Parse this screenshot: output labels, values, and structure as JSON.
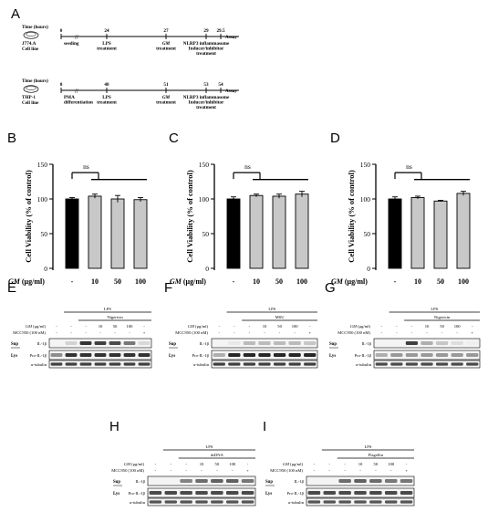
{
  "panel_letters": [
    "A",
    "B",
    "C",
    "D",
    "E",
    "F",
    "G",
    "H",
    "I"
  ],
  "timeline1": {
    "header": "Time (hours)",
    "cell_line": [
      "J774.A",
      "Cell line"
    ],
    "ticks": [
      {
        "value": "0",
        "label": [
          "seeding"
        ]
      },
      {
        "value": "24",
        "label": [
          "LPS",
          "treatment"
        ]
      },
      {
        "value": "27",
        "label": [
          "GM",
          "treatment"
        ]
      },
      {
        "value": "29",
        "label": [
          "NLRP3 inflammasome",
          "Inducer/inhibitor",
          "treatment"
        ]
      },
      {
        "value": "29.5",
        "label": [
          "Assay"
        ]
      }
    ]
  },
  "timeline2": {
    "header": "Time (hours)",
    "cell_line": [
      "THP-1",
      "Cell line"
    ],
    "ticks": [
      {
        "value": "0",
        "label": [
          "PMA",
          "differentiation"
        ]
      },
      {
        "value": "48",
        "label": [
          "LPS",
          "treatment"
        ]
      },
      {
        "value": "51",
        "label": [
          "GM",
          "treatment"
        ]
      },
      {
        "value": "53",
        "label": [
          "NLRP3 inflammasome",
          "Inducer/inhibitor",
          "treatment"
        ]
      },
      {
        "value": "54",
        "label": [
          "Assay"
        ]
      }
    ]
  },
  "chart_data": [
    {
      "type": "bar",
      "panel": "B",
      "ylabel": "Cell Viability (% of control)",
      "xlabel": "GM (μg/ml)",
      "categories": [
        "-",
        "10",
        "50",
        "100"
      ],
      "values": [
        100,
        104,
        100,
        99
      ],
      "errors": [
        2,
        3,
        5,
        3
      ],
      "bar_colors": [
        "#000000",
        "#c8c8c8",
        "#c8c8c8",
        "#c8c8c8"
      ],
      "ylim": [
        0,
        150
      ],
      "yticks": [
        0,
        50,
        100,
        150
      ],
      "annotation": "ns"
    },
    {
      "type": "bar",
      "panel": "C",
      "ylabel": "Cell Viability (% of control)",
      "xlabel": "GM (μg/ml)",
      "categories": [
        "-",
        "10",
        "50",
        "100"
      ],
      "values": [
        100,
        105,
        104,
        107
      ],
      "errors": [
        3,
        2,
        3,
        4
      ],
      "bar_colors": [
        "#000000",
        "#c8c8c8",
        "#c8c8c8",
        "#c8c8c8"
      ],
      "ylim": [
        0,
        150
      ],
      "yticks": [
        0,
        50,
        100,
        150
      ],
      "annotation": "ns"
    },
    {
      "type": "bar",
      "panel": "D",
      "ylabel": "Cell Viability (% of control)",
      "xlabel": "GM (μg/ml)",
      "categories": [
        "-",
        "10",
        "50",
        "100"
      ],
      "values": [
        100,
        102,
        97,
        108
      ],
      "errors": [
        3,
        2,
        1,
        3
      ],
      "bar_colors": [
        "#000000",
        "#c8c8c8",
        "#c8c8c8",
        "#c8c8c8"
      ],
      "ylim": [
        0,
        150
      ],
      "yticks": [
        0,
        50,
        100,
        150
      ],
      "annotation": "ns"
    }
  ],
  "blots": {
    "E": {
      "lps": "LPS",
      "inducer": "Nigericin",
      "gm_label": "GM (μg/ml)",
      "gm_values": [
        "-",
        "-",
        "-",
        "10",
        "50",
        "100",
        "-"
      ],
      "inhibitor_label": "MCC950 (100 nM)",
      "inhibitor_values": [
        "-",
        "-",
        "-",
        "-",
        "-",
        "-",
        "+"
      ],
      "sup": "Sup",
      "lys": "Lys",
      "rows": [
        "IL-1β",
        "Pro-IL-1β",
        "α-tubulin"
      ]
    },
    "F": {
      "lps": "LPS",
      "inducer": "MSU",
      "gm_label": "GM (μg/ml)",
      "gm_values": [
        "-",
        "-",
        "-",
        "10",
        "50",
        "100",
        "-"
      ],
      "inhibitor_label": "MCC950 (100 nM)",
      "inhibitor_values": [
        "-",
        "-",
        "-",
        "-",
        "-",
        "-",
        "+"
      ],
      "sup": "Sup",
      "lys": "Lys",
      "rows": [
        "IL-1β",
        "Pro-IL-1β",
        "α-tubulin"
      ]
    },
    "G": {
      "lps": "LPS",
      "inducer": "Nigericin",
      "gm_label": "GM (μg/ml)",
      "gm_values": [
        "-",
        "-",
        "-",
        "10",
        "50",
        "100",
        "-"
      ],
      "inhibitor_label": "MCC950 (100 nM)",
      "inhibitor_values": [
        "-",
        "-",
        "-",
        "-",
        "-",
        "-",
        "+"
      ],
      "sup": "Sup",
      "lys": "Lys",
      "rows": [
        "IL-1β",
        "Pro-IL-1β",
        "α-tubulin"
      ]
    },
    "H": {
      "lps": "LPS",
      "inducer": "dsDNA",
      "gm_label": "GM (μg/ml)",
      "gm_values": [
        "-",
        "-",
        "-",
        "10",
        "50",
        "100",
        "-"
      ],
      "inhibitor_label": "MCC950 (100 nM)",
      "inhibitor_values": [
        "-",
        "-",
        "-",
        "-",
        "-",
        "-",
        "+"
      ],
      "sup": "Sup",
      "lys": "Lys",
      "rows": [
        "IL-1β",
        "Pro-IL-1β",
        "α-tubulin"
      ]
    },
    "I": {
      "lps": "LPS",
      "inducer": "Flagellin",
      "gm_label": "GM (μg/ml)",
      "gm_values": [
        "-",
        "-",
        "-",
        "10",
        "50",
        "100",
        "-"
      ],
      "inhibitor_label": "MCC950 (100 nM)",
      "inhibitor_values": [
        "-",
        "-",
        "-",
        "-",
        "-",
        "-",
        "+"
      ],
      "sup": "Sup",
      "lys": "Lys",
      "rows": [
        "IL-1β",
        "Pro-IL-1β",
        "α-tubulin"
      ]
    }
  }
}
